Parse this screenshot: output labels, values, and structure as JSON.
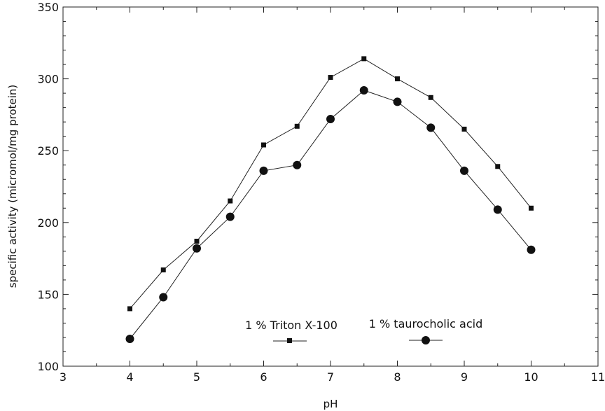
{
  "chart_data": {
    "type": "line",
    "xlabel": "pH",
    "ylabel": "specific activity (micromol/mg protein)",
    "xlim": [
      3,
      11
    ],
    "ylim": [
      100,
      350
    ],
    "xticks": [
      3,
      4,
      5,
      6,
      7,
      8,
      9,
      10,
      11
    ],
    "yticks": [
      100,
      150,
      200,
      250,
      300,
      350
    ],
    "grid": false,
    "legend_placement": "bottom-center",
    "x": [
      4,
      4.5,
      5,
      5.5,
      6,
      6.5,
      7,
      7.5,
      8,
      8.5,
      9,
      9.5,
      10
    ],
    "series": [
      {
        "name": "1 % Triton X-100",
        "marker": "square",
        "values": [
          140,
          167,
          187,
          215,
          254,
          267,
          301,
          314,
          300,
          287,
          265,
          239,
          210
        ]
      },
      {
        "name": "1 % taurocholic acid",
        "marker": "circle",
        "values": [
          119,
          148,
          182,
          204,
          236,
          240,
          272,
          292,
          284,
          266,
          236,
          209,
          181
        ]
      }
    ]
  }
}
